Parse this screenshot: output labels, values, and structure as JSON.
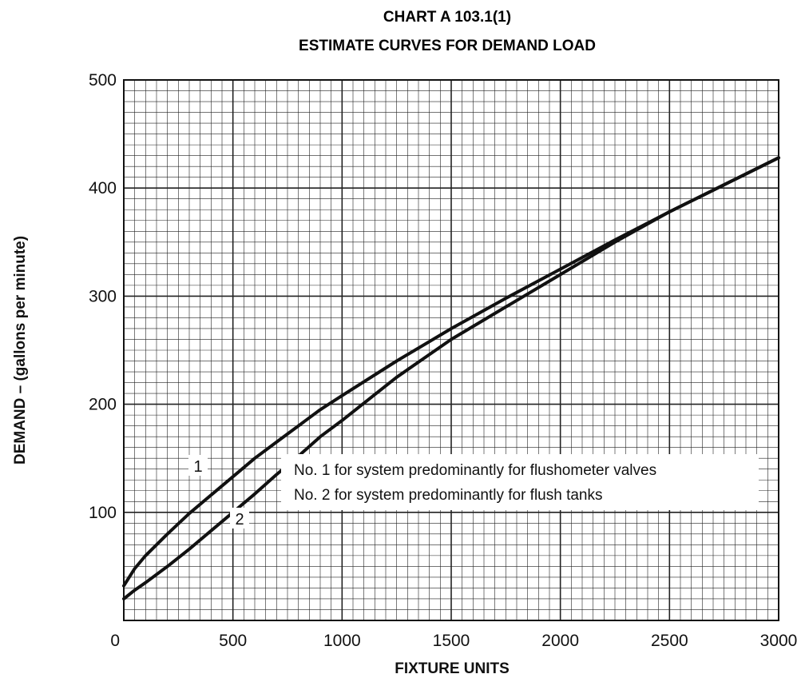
{
  "chart_data": {
    "type": "line",
    "title": "CHART A 103.1(1)",
    "subtitle": "ESTIMATE CURVES FOR DEMAND LOAD",
    "xlabel": "FIXTURE UNITS",
    "ylabel": "DEMAND – (gallons per minute)",
    "xlim": [
      0,
      3000
    ],
    "ylim": [
      0,
      500
    ],
    "x_ticks": [
      0,
      500,
      1000,
      1500,
      2000,
      2500,
      3000
    ],
    "y_ticks": [
      100,
      200,
      300,
      400,
      500
    ],
    "grid": true,
    "series": [
      {
        "name": "1",
        "x": [
          0,
          50,
          100,
          200,
          300,
          400,
          500,
          600,
          700,
          800,
          900,
          1000,
          1250,
          1500,
          1750,
          2000,
          2250,
          2500,
          2750,
          3000
        ],
        "y": [
          32,
          48,
          60,
          80,
          99,
          116,
          133,
          150,
          165,
          180,
          195,
          208,
          240,
          270,
          298,
          325,
          352,
          378,
          403,
          428
        ]
      },
      {
        "name": "2",
        "x": [
          0,
          50,
          100,
          200,
          300,
          400,
          500,
          600,
          700,
          800,
          900,
          1000,
          1250,
          1500,
          1750,
          2000,
          2250,
          2500,
          2750,
          3000
        ],
        "y": [
          20,
          28,
          35,
          50,
          66,
          83,
          100,
          117,
          135,
          152,
          170,
          185,
          225,
          260,
          290,
          320,
          350,
          378,
          403,
          428
        ]
      }
    ],
    "annotations": [
      "No. 1 for system predominantly for flushometer valves",
      "No. 2 for system predominantly for flush tanks"
    ]
  }
}
